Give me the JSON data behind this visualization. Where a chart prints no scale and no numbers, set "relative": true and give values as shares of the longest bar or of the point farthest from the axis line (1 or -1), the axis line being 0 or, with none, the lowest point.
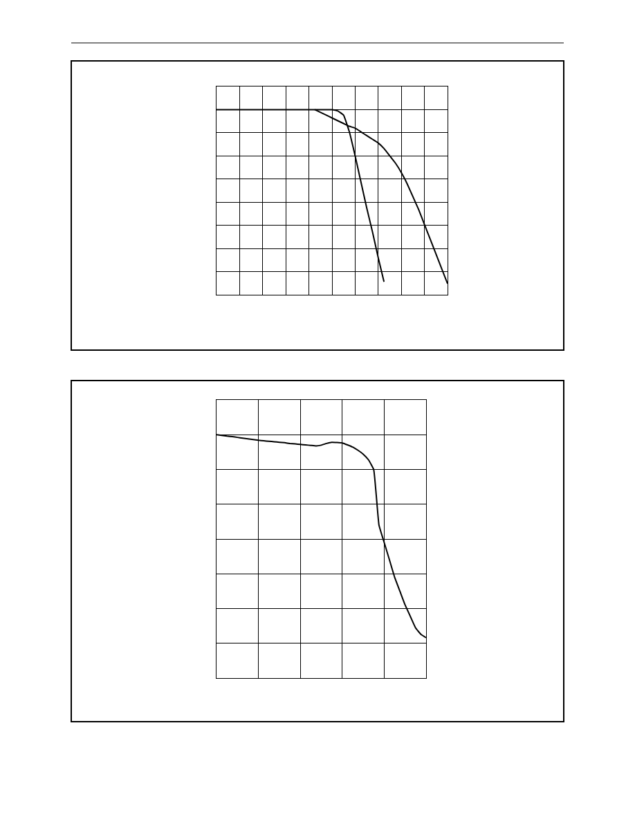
{
  "chart_data": [
    {
      "type": "line",
      "relative": true,
      "grid": true,
      "marker": "none",
      "line_style": "solid",
      "categories": [
        null,
        null,
        null,
        null,
        null,
        null,
        null,
        null,
        null,
        null,
        null,
        null,
        null,
        null,
        null,
        null,
        null,
        null,
        null,
        null,
        null,
        null,
        null,
        null,
        null,
        null,
        null,
        null,
        null,
        null,
        null,
        null,
        null,
        null,
        null,
        null,
        null,
        null,
        null,
        null,
        null
      ],
      "series": [
        {
          "color": "#000000",
          "values": [
            1.0,
            1.0,
            1.0,
            1.0,
            1.0,
            1.0,
            1.0,
            1.0,
            1.0,
            1.0,
            1.0,
            1.0,
            1.0,
            1.0,
            1.0,
            1.0,
            1.0,
            1.0,
            1.0,
            1.0,
            1.0,
            0.993,
            0.97,
            0.88,
            0.75,
            0.61,
            0.47,
            0.34,
            0.2,
            0.07,
            null,
            null,
            null,
            null,
            null,
            null,
            null,
            null,
            null,
            null,
            null
          ]
        },
        {
          "color": "#000000",
          "values": [
            null,
            null,
            null,
            null,
            null,
            null,
            null,
            null,
            null,
            null,
            null,
            null,
            null,
            null,
            null,
            null,
            null,
            1.0,
            0.985,
            0.97,
            0.955,
            0.94,
            0.925,
            0.91,
            0.9,
            0.88,
            0.86,
            0.84,
            0.82,
            0.79,
            0.75,
            0.71,
            0.66,
            0.6,
            0.53,
            0.46,
            0.38,
            0.3,
            0.22,
            0.14,
            0.06
          ]
        }
      ]
    },
    {
      "type": "line",
      "relative": true,
      "grid": true,
      "marker": "none",
      "line_style": "solid",
      "categories": [
        null,
        null,
        null,
        null,
        null,
        null,
        null,
        null,
        null,
        null,
        null,
        null,
        null,
        null,
        null,
        null,
        null,
        null,
        null,
        null,
        null,
        null,
        null,
        null,
        null,
        null,
        null,
        null,
        null,
        null,
        null,
        null,
        null,
        null,
        null,
        null,
        null,
        null,
        null,
        null,
        null
      ],
      "series": [
        {
          "color": "#000000",
          "values": [
            1.0,
            0.997,
            0.994,
            0.992,
            0.989,
            0.986,
            0.983,
            0.98,
            0.977,
            0.975,
            0.973,
            0.971,
            0.969,
            0.967,
            0.964,
            0.962,
            0.96,
            0.958,
            0.956,
            0.954,
            0.957,
            0.964,
            0.969,
            0.968,
            0.966,
            0.958,
            0.949,
            0.936,
            0.92,
            0.897,
            0.857,
            0.629,
            0.557,
            0.486,
            0.414,
            0.357,
            0.3,
            0.253,
            0.206,
            0.18,
            0.166
          ]
        }
      ]
    }
  ]
}
